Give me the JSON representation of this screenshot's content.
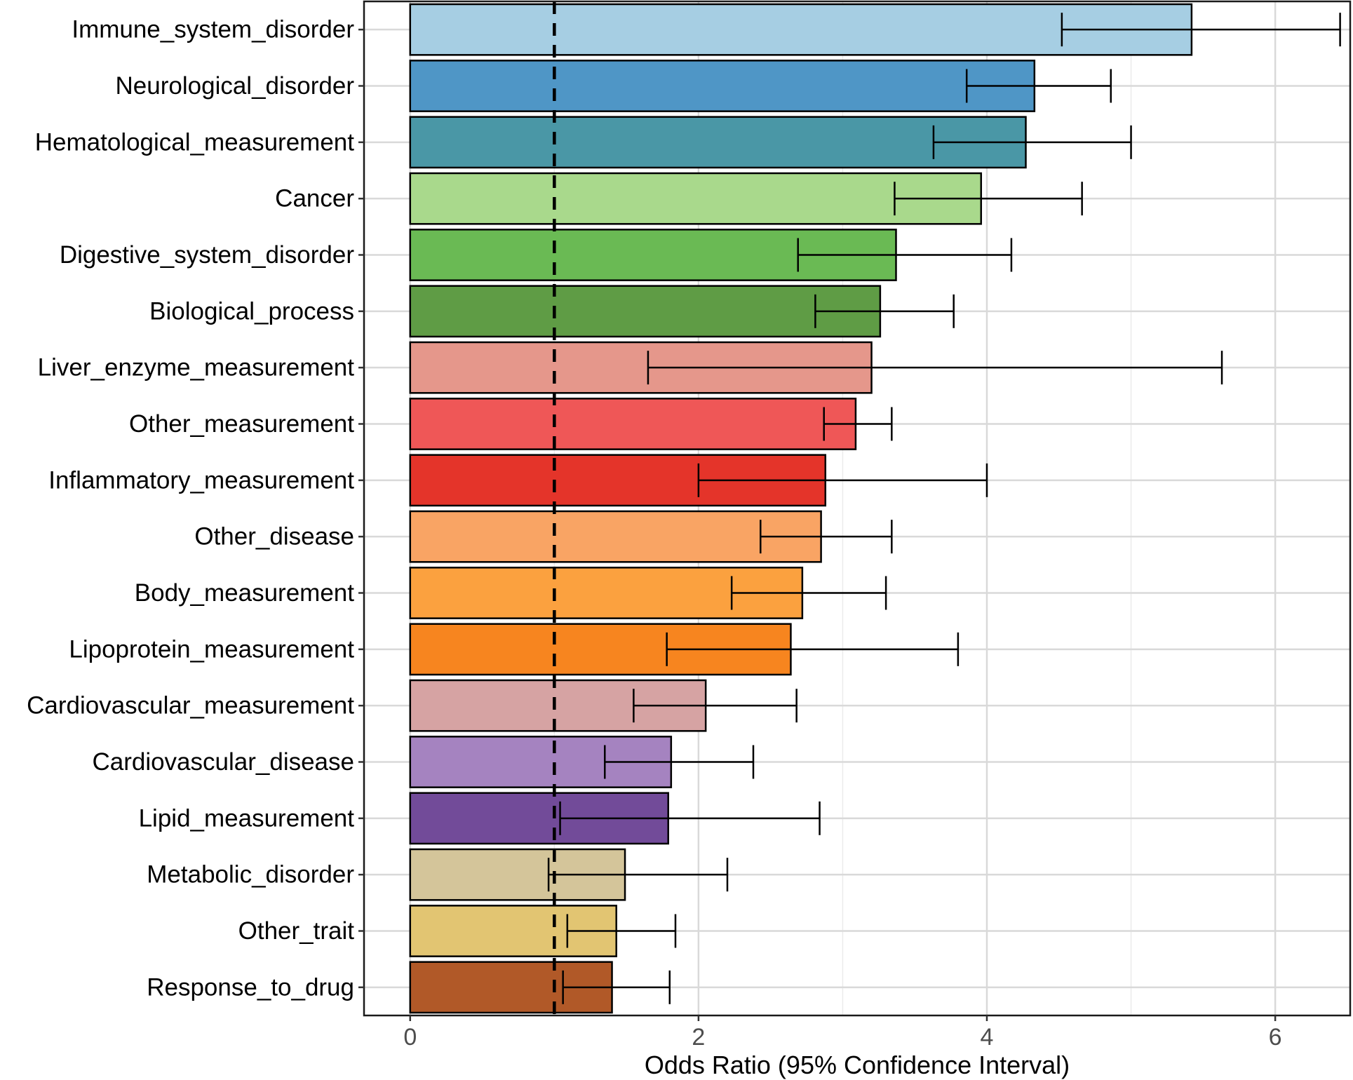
{
  "chart_data": {
    "type": "bar",
    "orientation": "horizontal",
    "title": "",
    "xlabel": "Odds Ratio (95% Confidence Interval)",
    "ylabel": "",
    "xlim": [
      -0.32,
      6.52
    ],
    "xticks": [
      0,
      2,
      4,
      6
    ],
    "grid": true,
    "reference_line": 1,
    "categories": [
      "Immune_system_disorder",
      "Neurological_disorder",
      "Hematological_measurement",
      "Cancer",
      "Digestive_system_disorder",
      "Biological_process",
      "Liver_enzyme_measurement",
      "Other_measurement",
      "Inflammatory_measurement",
      "Other_disease",
      "Body_measurement",
      "Lipoprotein_measurement",
      "Cardiovascular_measurement",
      "Cardiovascular_disease",
      "Lipid_measurement",
      "Metabolic_disorder",
      "Other_trait",
      "Response_to_drug"
    ],
    "values": [
      5.42,
      4.33,
      4.27,
      3.96,
      3.37,
      3.26,
      3.2,
      3.09,
      2.88,
      2.85,
      2.72,
      2.64,
      2.05,
      1.81,
      1.79,
      1.49,
      1.43,
      1.4
    ],
    "ci_lower": [
      4.52,
      3.86,
      3.63,
      3.36,
      2.69,
      2.81,
      1.65,
      2.87,
      2.0,
      2.43,
      2.23,
      1.78,
      1.55,
      1.35,
      1.04,
      0.96,
      1.09,
      1.06
    ],
    "ci_upper": [
      6.45,
      4.86,
      5.0,
      4.66,
      4.17,
      3.77,
      5.63,
      3.34,
      4.0,
      3.34,
      3.3,
      3.8,
      2.68,
      2.38,
      2.84,
      2.2,
      1.84,
      1.8
    ],
    "colors": [
      "#a6cee3",
      "#4f96c6",
      "#4a97a6",
      "#a9d98c",
      "#6aba54",
      "#5f9c45",
      "#e5978b",
      "#ef5757",
      "#e4342a",
      "#f9a464",
      "#fba13f",
      "#f7851f",
      "#d6a3a3",
      "#a583c0",
      "#724b99",
      "#d4c59a",
      "#e2c572",
      "#b15928"
    ]
  }
}
